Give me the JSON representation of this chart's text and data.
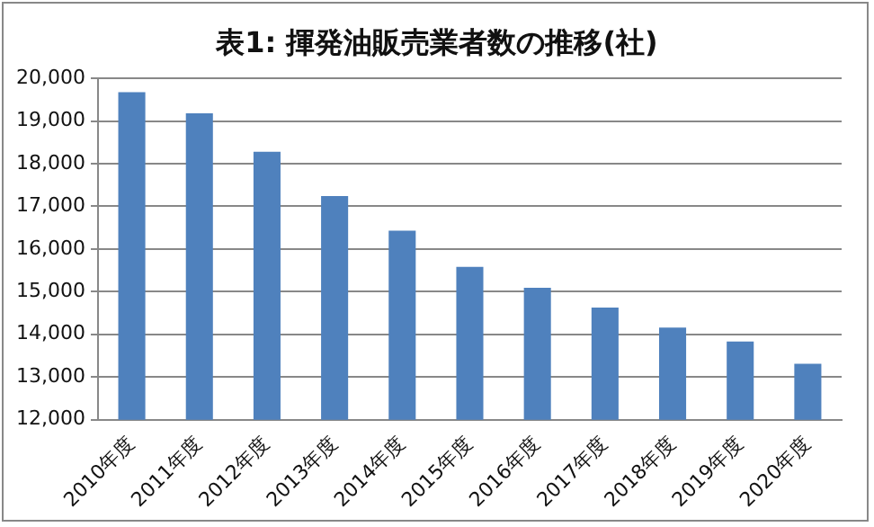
{
  "chart_data": {
    "type": "bar",
    "title": "表1: 揮発油販売業者数の推移(社)",
    "categories": [
      "2010年度",
      "2011年度",
      "2012年度",
      "2013年度",
      "2014年度",
      "2015年度",
      "2016年度",
      "2017年度",
      "2018年度",
      "2019年度",
      "2020年度"
    ],
    "values": [
      19680,
      19180,
      18280,
      17240,
      16430,
      15580,
      15090,
      14630,
      14160,
      13830,
      13310
    ],
    "color": "#4f81bd",
    "ylim": [
      12000,
      20000
    ],
    "yticks": [
      {
        "value": 12000,
        "label": "12,000"
      },
      {
        "value": 13000,
        "label": "13,000"
      },
      {
        "value": 14000,
        "label": "14,000"
      },
      {
        "value": 15000,
        "label": "15,000"
      },
      {
        "value": 16000,
        "label": "16,000"
      },
      {
        "value": 17000,
        "label": "17,000"
      },
      {
        "value": 18000,
        "label": "18,000"
      },
      {
        "value": 19000,
        "label": "19,000"
      },
      {
        "value": 20000,
        "label": "20,000"
      }
    ],
    "grid": "y"
  }
}
